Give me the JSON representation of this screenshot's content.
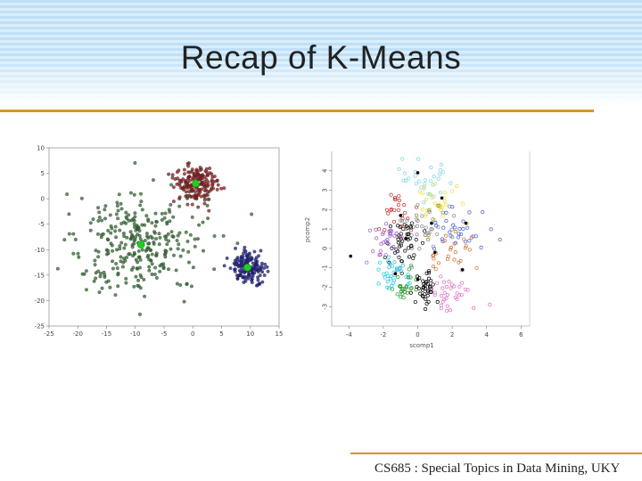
{
  "slide": {
    "title": "Recap of K-Means",
    "footer": "CS685 : Special Topics in Data Mining, UKY"
  },
  "colors": {
    "accent_rule": "#d8961e",
    "header_stripe_a": "#bfe0f7",
    "header_stripe_b": "#d9eefb"
  },
  "chart_data": [
    {
      "type": "scatter",
      "title": "",
      "xlabel": "",
      "ylabel": "",
      "xlim": [
        -25,
        15
      ],
      "ylim": [
        -25,
        10
      ],
      "x_ticks": [
        "-25",
        "-20",
        "-15",
        "-10",
        "-5",
        "0",
        "5",
        "10",
        "15"
      ],
      "y_ticks": [
        "10",
        "5",
        "0",
        "-5",
        "-10",
        "-15",
        "-20",
        "-25"
      ],
      "grid": false,
      "clusters": [
        {
          "color": "#8b1a1a",
          "centroid": [
            0.5,
            3.0
          ],
          "spread": [
            2.0,
            2.0
          ],
          "n": 180
        },
        {
          "color": "#2e6b2e",
          "centroid": [
            -9.0,
            -9.0
          ],
          "spread": [
            5.5,
            5.5
          ],
          "n": 300
        },
        {
          "color": "#1a1a8b",
          "centroid": [
            9.5,
            -13.5
          ],
          "spread": [
            1.6,
            1.6
          ],
          "n": 150
        }
      ],
      "centroid_color": "#22cc22",
      "outlier_color": "#666666"
    },
    {
      "type": "scatter",
      "title": "",
      "xlabel": "scomp1",
      "ylabel": "pcomp2",
      "xlim": [
        -5,
        6.5
      ],
      "ylim": [
        -4,
        5
      ],
      "x_ticks": [
        "-4",
        "-2",
        "0",
        "2",
        "4",
        "6"
      ],
      "y_ticks": [
        "4",
        "3",
        "2",
        "1",
        "0",
        "-1",
        "-2",
        "-3"
      ],
      "grid": false,
      "clusters": [
        {
          "color": "#7fd3e8",
          "centroid": [
            0.3,
            3.5
          ],
          "spread": [
            0.7,
            0.6
          ],
          "n": 30
        },
        {
          "color": "#e8e03a",
          "centroid": [
            1.0,
            2.2
          ],
          "spread": [
            0.6,
            0.6
          ],
          "n": 35
        },
        {
          "color": "#c83232",
          "centroid": [
            -1.0,
            1.8
          ],
          "spread": [
            0.5,
            0.6
          ],
          "n": 25
        },
        {
          "color": "#888888",
          "centroid": [
            0.3,
            1.0
          ],
          "spread": [
            0.9,
            0.7
          ],
          "n": 40
        },
        {
          "color": "#111111",
          "centroid": [
            -0.9,
            0.3
          ],
          "spread": [
            0.5,
            0.6
          ],
          "n": 45
        },
        {
          "color": "#9b59d0",
          "centroid": [
            -1.9,
            0.5
          ],
          "spread": [
            0.6,
            0.7
          ],
          "n": 30
        },
        {
          "color": "#4a5fd0",
          "centroid": [
            2.3,
            0.9
          ],
          "spread": [
            0.8,
            0.6
          ],
          "n": 30
        },
        {
          "color": "#d07030",
          "centroid": [
            1.8,
            -0.3
          ],
          "spread": [
            0.7,
            0.5
          ],
          "n": 25
        },
        {
          "color": "#20c8e0",
          "centroid": [
            -1.4,
            -1.4
          ],
          "spread": [
            0.5,
            0.4
          ],
          "n": 35
        },
        {
          "color": "#2a9a2a",
          "centroid": [
            -0.6,
            -1.9
          ],
          "spread": [
            0.4,
            0.4
          ],
          "n": 25
        },
        {
          "color": "#000000",
          "centroid": [
            0.5,
            -2.0
          ],
          "spread": [
            0.3,
            0.5
          ],
          "n": 40
        },
        {
          "color": "#e070c8",
          "centroid": [
            2.0,
            -2.2
          ],
          "spread": [
            0.7,
            0.5
          ],
          "n": 35
        }
      ],
      "centroids": [
        [
          0.0,
          3.9
        ],
        [
          1.4,
          2.6
        ],
        [
          -1.0,
          1.7
        ],
        [
          0.8,
          1.3
        ],
        [
          -0.7,
          0.5
        ],
        [
          2.8,
          1.3
        ],
        [
          1.0,
          -0.2
        ],
        [
          -1.3,
          -1.3
        ],
        [
          0.0,
          -1.6
        ],
        [
          2.6,
          -1.1
        ],
        [
          -3.9,
          -0.4
        ]
      ]
    }
  ]
}
